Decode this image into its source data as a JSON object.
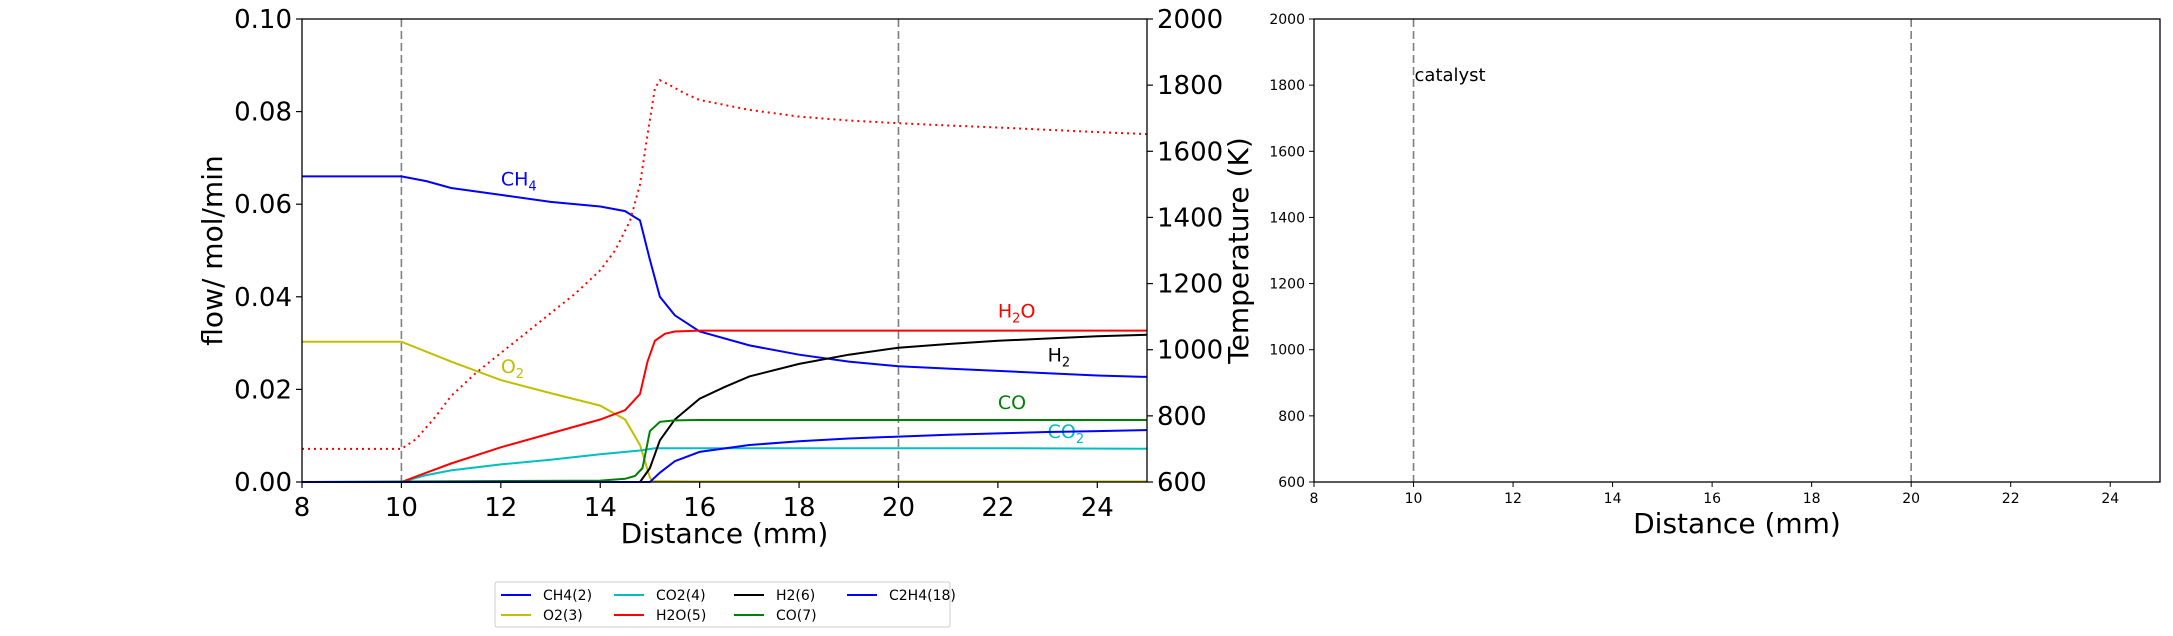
{
  "chart_data": [
    {
      "type": "line",
      "xlabel": "Distance (mm)",
      "ylabel": "flow/ mol/min",
      "ylabel_right": "Temperature (K)",
      "xlim": [
        8,
        25
      ],
      "ylim": [
        0,
        0.1
      ],
      "ylim_right": [
        600,
        2000
      ],
      "xticks": [
        "8",
        "10",
        "12",
        "14",
        "16",
        "18",
        "20",
        "22",
        "24"
      ],
      "yticks": [
        "0.00",
        "0.02",
        "0.04",
        "0.06",
        "0.08",
        "0.10"
      ],
      "yticks_right": [
        "600",
        "800",
        "1000",
        "1200",
        "1400",
        "1600",
        "1800",
        "2000"
      ],
      "vlines": [
        10,
        20
      ],
      "grid": false,
      "legend_position": "bottom-center",
      "series": [
        {
          "name": "CH4(2)",
          "label": "CH",
          "label_sub": "4",
          "label_at": [
            12.0,
            0.064
          ],
          "color": "#0000ff",
          "x": [
            8,
            10,
            10.5,
            11,
            12,
            13,
            14,
            14.5,
            14.8,
            15.0,
            15.2,
            15.5,
            16,
            17,
            18,
            19,
            20,
            21,
            22,
            23,
            24,
            25
          ],
          "y": [
            0.066,
            0.066,
            0.065,
            0.0635,
            0.062,
            0.0605,
            0.0595,
            0.0585,
            0.0565,
            0.048,
            0.04,
            0.036,
            0.0325,
            0.0295,
            0.0275,
            0.026,
            0.025,
            0.0245,
            0.024,
            0.0235,
            0.023,
            0.0227
          ]
        },
        {
          "name": "O2(3)",
          "label": "O",
          "label_sub": "2",
          "label_at": [
            12.0,
            0.0235
          ],
          "color": "#bfbf00",
          "x": [
            8,
            10,
            11,
            12,
            13,
            14,
            14.5,
            14.8,
            15.0,
            15.05,
            16,
            18,
            20,
            22,
            25
          ],
          "y": [
            0.0303,
            0.0303,
            0.026,
            0.022,
            0.0192,
            0.0165,
            0.0135,
            0.008,
            0.001,
            0.0002,
            0.0001,
            0.0001,
            0.0001,
            0.0001,
            0.0001
          ]
        },
        {
          "name": "CO2(4)",
          "label": "CO",
          "label_sub": "2",
          "label_at": [
            23.0,
            0.0095
          ],
          "color": "#00bfbf",
          "x": [
            8,
            10,
            10.5,
            11,
            12,
            13,
            14,
            14.8,
            15.1,
            15.5,
            16,
            18,
            20,
            22,
            25
          ],
          "y": [
            0,
            0,
            0.0015,
            0.0025,
            0.0038,
            0.0048,
            0.006,
            0.0068,
            0.0073,
            0.0073,
            0.0073,
            0.0073,
            0.0073,
            0.0073,
            0.0072
          ]
        },
        {
          "name": "H2O(5)",
          "label": "H",
          "label_sub": "2",
          "label_tail": "O",
          "label_at": [
            22.0,
            0.0355
          ],
          "color": "#ff0000",
          "x": [
            8,
            10,
            10.5,
            11,
            12,
            13,
            14,
            14.5,
            14.8,
            14.95,
            15.1,
            15.3,
            15.5,
            16,
            18,
            20,
            22,
            25
          ],
          "y": [
            0,
            0,
            0.002,
            0.004,
            0.0075,
            0.0105,
            0.0135,
            0.0155,
            0.019,
            0.026,
            0.0305,
            0.032,
            0.0325,
            0.0327,
            0.0327,
            0.0327,
            0.0327,
            0.0327
          ]
        },
        {
          "name": "H2(6)",
          "label": "H",
          "label_sub": "2",
          "label_at": [
            23.0,
            0.026
          ],
          "color": "#000000",
          "x": [
            8,
            14.8,
            15.0,
            15.2,
            15.5,
            16,
            16.5,
            17,
            18,
            19,
            20,
            21,
            22,
            23,
            24,
            25
          ],
          "y": [
            0,
            0,
            0.003,
            0.009,
            0.0135,
            0.018,
            0.0205,
            0.0228,
            0.0255,
            0.0275,
            0.029,
            0.0298,
            0.0305,
            0.031,
            0.0315,
            0.0318
          ]
        },
        {
          "name": "CO(7)",
          "label": "CO",
          "label_sub": "",
          "label_at": [
            22.0,
            0.0158
          ],
          "color": "#008000",
          "x": [
            8,
            14.0,
            14.5,
            14.7,
            14.85,
            15.0,
            15.2,
            15.5,
            16,
            18,
            20,
            22,
            25
          ],
          "y": [
            0,
            0.0003,
            0.0007,
            0.0013,
            0.003,
            0.011,
            0.013,
            0.0133,
            0.0134,
            0.0134,
            0.0134,
            0.0134,
            0.0134
          ]
        },
        {
          "name": "C2H4(18)",
          "label": "",
          "label_sub": "",
          "label_at": [
            0,
            0
          ],
          "color": "#0000ff",
          "x": [
            8,
            15.0,
            15.2,
            15.5,
            16,
            17,
            18,
            19,
            20,
            21,
            22,
            23,
            24,
            25
          ],
          "y": [
            0,
            0,
            0.002,
            0.0045,
            0.0065,
            0.008,
            0.0088,
            0.0094,
            0.0098,
            0.0102,
            0.0105,
            0.0108,
            0.011,
            0.0112
          ]
        }
      ],
      "temperature_series": {
        "color": "#ff0000",
        "style": "dotted",
        "x": [
          8,
          10,
          10.3,
          10.7,
          11,
          11.5,
          12,
          12.5,
          13,
          13.5,
          14,
          14.3,
          14.6,
          14.8,
          14.95,
          15.1,
          15.2,
          15.4,
          15.7,
          16,
          17,
          18,
          19,
          20,
          21,
          22,
          23,
          24,
          25
        ],
        "y": [
          700,
          700,
          730,
          800,
          860,
          930,
          990,
          1050,
          1110,
          1170,
          1240,
          1300,
          1390,
          1500,
          1650,
          1790,
          1815,
          1800,
          1775,
          1755,
          1725,
          1705,
          1693,
          1685,
          1678,
          1672,
          1665,
          1658,
          1652
        ]
      }
    },
    {
      "type": "line",
      "xlabel": "Distance (mm)",
      "xlim": [
        8,
        25
      ],
      "ylim": [
        600,
        2000
      ],
      "xticks": [
        "8",
        "10",
        "12",
        "14",
        "16",
        "18",
        "20",
        "22",
        "24"
      ],
      "yticks": [
        "600",
        "800",
        "1000",
        "1200",
        "1400",
        "1600",
        "1800",
        "2000"
      ],
      "vlines": [
        10,
        20
      ],
      "annotation": "catalyst",
      "annotation_at": [
        10.0,
        1830
      ],
      "grid": false
    }
  ]
}
